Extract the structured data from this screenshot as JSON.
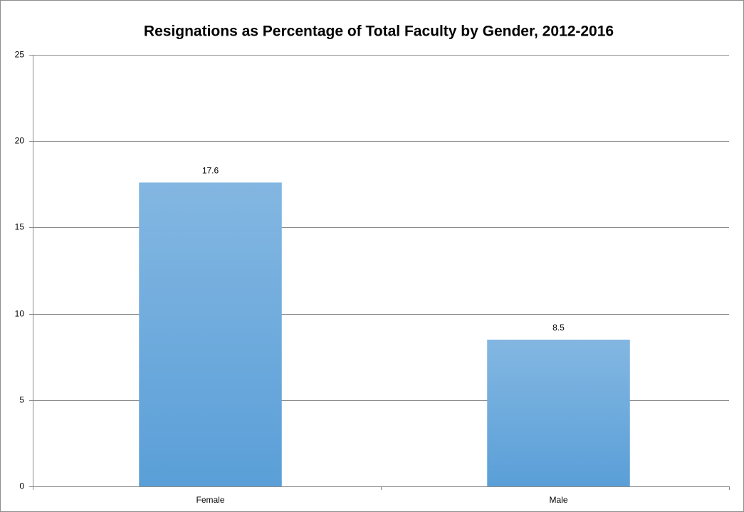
{
  "chart_data": {
    "type": "bar",
    "title": "Resignations as Percentage of Total Faculty by Gender, 2012-2016",
    "categories": [
      "Female",
      "Male"
    ],
    "values": [
      17.6,
      8.5
    ],
    "color": "#5a9fd8",
    "ylim": [
      0,
      25
    ],
    "yticks": [
      0,
      5,
      10,
      15,
      20,
      25
    ],
    "grid": true
  }
}
